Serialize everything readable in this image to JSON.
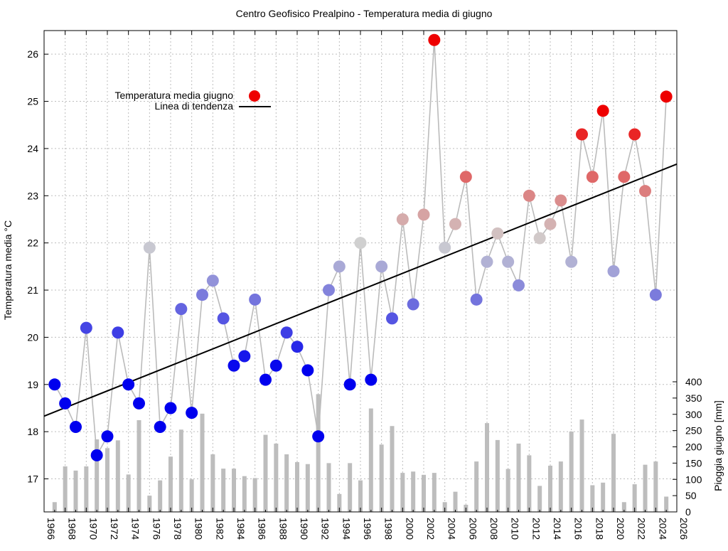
{
  "chart_data": {
    "type": "line",
    "title": "Centro Geofisico Prealpino - Temperatura media di giugno",
    "ylabel": "Temperatura media °C",
    "y2label": "Pioggia giugno [mm]",
    "xlim": [
      1966,
      2026
    ],
    "ylim": [
      16.3,
      26.5
    ],
    "y2lim": [
      0,
      400
    ],
    "x_ticks": [
      1966,
      1968,
      1970,
      1972,
      1974,
      1976,
      1978,
      1980,
      1982,
      1984,
      1986,
      1988,
      1990,
      1992,
      1994,
      1996,
      1998,
      2000,
      2002,
      2004,
      2006,
      2008,
      2010,
      2012,
      2014,
      2016,
      2018,
      2020,
      2022,
      2024,
      2026
    ],
    "y_ticks": [
      17,
      18,
      19,
      20,
      21,
      22,
      23,
      24,
      25,
      26
    ],
    "y2_ticks": [
      0,
      50,
      100,
      150,
      200,
      250,
      300,
      350,
      400
    ],
    "grid": true,
    "legend": {
      "placement": "top-left",
      "entries": [
        "Temperatura media giugno",
        "Linea di tendenza"
      ]
    },
    "colors": {
      "cold": "#0000ee",
      "neutral": "#d0d0d0",
      "hot": "#ee0000",
      "connector": "#bbbbbb",
      "trend": "#000000",
      "rain_bar": "#bdbdbd"
    },
    "years": [
      1967,
      1968,
      1969,
      1970,
      1971,
      1972,
      1973,
      1974,
      1975,
      1976,
      1977,
      1978,
      1979,
      1980,
      1981,
      1982,
      1983,
      1984,
      1985,
      1986,
      1987,
      1988,
      1989,
      1990,
      1991,
      1992,
      1993,
      1994,
      1995,
      1996,
      1997,
      1998,
      1999,
      2000,
      2001,
      2002,
      2003,
      2004,
      2005,
      2006,
      2007,
      2008,
      2009,
      2010,
      2011,
      2012,
      2013,
      2014,
      2015,
      2016,
      2017,
      2018,
      2019,
      2020,
      2021,
      2022,
      2023,
      2024,
      2025
    ],
    "series": [
      {
        "name": "Temperatura media giugno",
        "values": [
          19.0,
          18.6,
          18.1,
          20.2,
          17.5,
          17.9,
          20.1,
          19.0,
          18.6,
          21.9,
          18.1,
          18.5,
          20.6,
          18.4,
          20.9,
          21.2,
          20.4,
          19.4,
          19.6,
          20.8,
          19.1,
          19.4,
          20.1,
          19.8,
          19.3,
          17.9,
          21.0,
          21.5,
          19.0,
          22.0,
          19.1,
          21.5,
          20.4,
          22.5,
          20.7,
          22.6,
          26.3,
          21.9,
          22.4,
          23.4,
          20.8,
          21.6,
          22.2,
          21.6,
          21.1,
          23.0,
          22.1,
          22.4,
          22.9,
          21.6,
          24.3,
          23.4,
          24.8,
          21.4,
          23.4,
          24.3,
          23.1,
          20.9,
          25.1
        ]
      },
      {
        "name": "Linea di tendenza",
        "x": [
          1966,
          2026
        ],
        "values": [
          18.33,
          23.67
        ]
      },
      {
        "name": "Pioggia giugno",
        "values": [
          30,
          140,
          127,
          140,
          223,
          196,
          220,
          115,
          282,
          50,
          97,
          170,
          253,
          100,
          302,
          177,
          133,
          133,
          110,
          104,
          237,
          210,
          177,
          153,
          147,
          362,
          150,
          55,
          150,
          97,
          318,
          207,
          264,
          120,
          124,
          114,
          120,
          30,
          62,
          22,
          155,
          273,
          221,
          132,
          210,
          174,
          80,
          142,
          155,
          247,
          284,
          82,
          90,
          240,
          30,
          85,
          145,
          155,
          47
        ]
      }
    ]
  }
}
